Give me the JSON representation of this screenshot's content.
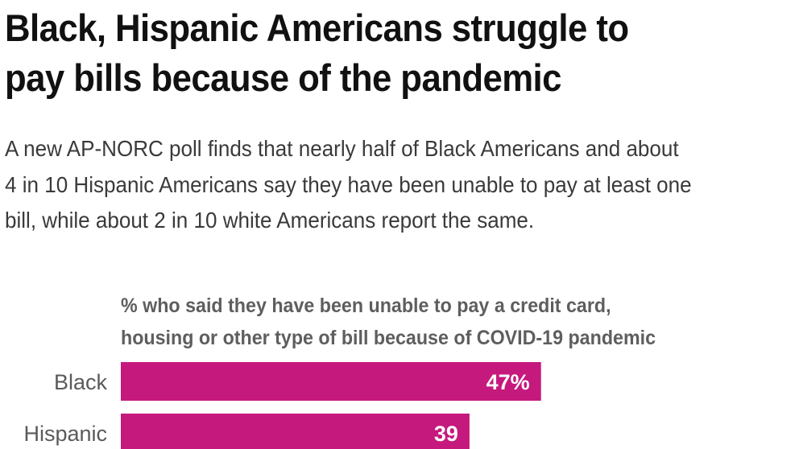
{
  "title_lines": [
    "Black, Hispanic Americans struggle to",
    "pay bills because of the pandemic"
  ],
  "subtitle_lines": [
    "A new AP-NORC poll finds that nearly half of Black Americans and about",
    "4 in 10 Hispanic Americans say they have been unable to pay at least one",
    "bill, while about 2 in 10 white Americans report the same."
  ],
  "chart_data": {
    "type": "bar",
    "orientation": "horizontal",
    "title_lines": [
      "% who said they have been unable to pay a credit card,",
      "housing or other type of bill because of COVID-19 pandemic"
    ],
    "categories": [
      "Black",
      "Hispanic"
    ],
    "values": [
      47,
      39
    ],
    "value_labels": [
      "47%",
      "39"
    ],
    "xlim": [
      0,
      100
    ],
    "grid": false,
    "legend": "none",
    "bar_color": "#c5197d",
    "value_label_color": "#ffffff"
  }
}
